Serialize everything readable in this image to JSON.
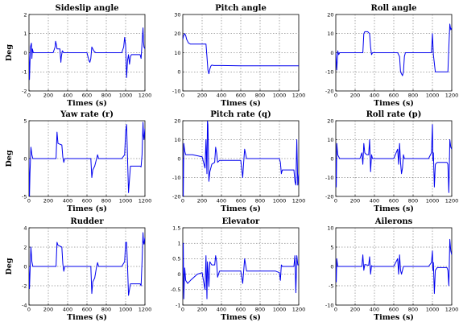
{
  "chart_data": [
    {
      "type": "line",
      "title": "Sideslip angle",
      "xlabel": "Times (s)",
      "ylabel": "Deg",
      "xlim": [
        0,
        1200
      ],
      "ylim": [
        -2,
        2
      ],
      "xticks": [
        0,
        200,
        400,
        600,
        800,
        1000,
        1200
      ],
      "yticks": [
        -2,
        -1,
        0,
        1,
        2
      ],
      "grid": true,
      "series": [
        {
          "color": "#0000ee",
          "x": [
            0,
            5,
            15,
            25,
            30,
            35,
            45,
            60,
            250,
            270,
            275,
            285,
            290,
            320,
            330,
            335,
            345,
            360,
            380,
            600,
            620,
            630,
            640,
            650,
            670,
            690,
            700,
            710,
            730,
            960,
            980,
            990,
            1000,
            1010,
            1020,
            1030,
            1040,
            1050,
            1060,
            1100,
            1150,
            1160,
            1170,
            1180,
            1185,
            1190,
            1200
          ],
          "y": [
            0,
            -1.4,
            0.3,
            0.5,
            -0.3,
            0.2,
            0,
            0,
            0,
            0.3,
            0.6,
            0.4,
            0.2,
            0.2,
            -0.5,
            -0.2,
            0.1,
            0,
            0,
            0,
            -0.4,
            -0.5,
            -0.3,
            0.3,
            0.1,
            0,
            0,
            0,
            0,
            0,
            0.3,
            0.8,
            0.4,
            -1.3,
            -0.4,
            -0.1,
            -0.6,
            -0.2,
            -0.1,
            -0.1,
            -0.1,
            -0.3,
            0.5,
            1.3,
            0.6,
            0.3,
            0.2
          ]
        }
      ]
    },
    {
      "type": "line",
      "title": "Pitch angle",
      "xlabel": "Times (s)",
      "ylabel": "",
      "xlim": [
        0,
        1200
      ],
      "ylim": [
        -10,
        30
      ],
      "xticks": [
        0,
        200,
        400,
        600,
        800,
        1000,
        1200
      ],
      "yticks": [
        -10,
        0,
        10,
        20,
        30
      ],
      "grid": true,
      "series": [
        {
          "color": "#0000ee",
          "x": [
            0,
            8,
            20,
            30,
            40,
            50,
            60,
            80,
            100,
            150,
            200,
            240,
            250,
            260,
            270,
            280,
            290,
            300,
            320,
            400,
            600,
            800,
            1000,
            1200
          ],
          "y": [
            17,
            19,
            20,
            19,
            17,
            16,
            15,
            14.5,
            14.5,
            14.5,
            14.5,
            14.5,
            8,
            1,
            -1,
            1.5,
            3,
            3.5,
            3.3,
            3.3,
            3.2,
            3.2,
            3.2,
            3.2
          ]
        }
      ]
    },
    {
      "type": "line",
      "title": "Roll angle",
      "xlabel": "Times (s)",
      "ylabel": "",
      "xlim": [
        0,
        1200
      ],
      "ylim": [
        -20,
        20
      ],
      "xticks": [
        0,
        200,
        400,
        600,
        800,
        1000,
        1200
      ],
      "yticks": [
        -20,
        -10,
        0,
        10,
        20
      ],
      "grid": true,
      "series": [
        {
          "color": "#0000ee",
          "x": [
            0,
            10,
            20,
            30,
            40,
            60,
            250,
            280,
            290,
            300,
            330,
            350,
            360,
            370,
            380,
            400,
            600,
            640,
            660,
            670,
            690,
            700,
            710,
            720,
            730,
            960,
            990,
            1000,
            1010,
            1030,
            1050,
            1100,
            1150,
            1160,
            1170,
            1180,
            1190,
            1200
          ],
          "y": [
            0,
            -9,
            1,
            -1,
            0,
            0,
            0,
            0,
            10,
            11,
            11,
            10,
            3,
            -1,
            0,
            0,
            0,
            0,
            -2,
            -10,
            -12,
            -10,
            -2,
            0,
            0,
            0,
            0,
            10,
            -1,
            -10,
            -10,
            -10,
            -10,
            -10,
            3,
            15,
            12,
            13
          ]
        }
      ]
    },
    {
      "type": "line",
      "title": "Yaw rate (r)",
      "xlabel": "Times (s)",
      "ylabel": "Deg",
      "xlim": [
        0,
        1200
      ],
      "ylim": [
        -5,
        5
      ],
      "xticks": [
        0,
        200,
        400,
        600,
        800,
        1000,
        1200
      ],
      "yticks": [
        -5,
        0,
        5
      ],
      "grid": true,
      "series": [
        {
          "color": "#0000ee",
          "x": [
            0,
            5,
            10,
            20,
            30,
            40,
            60,
            250,
            280,
            290,
            300,
            340,
            350,
            360,
            370,
            380,
            600,
            640,
            650,
            660,
            680,
            700,
            710,
            720,
            730,
            960,
            990,
            1000,
            1010,
            1020,
            1030,
            1050,
            1100,
            1150,
            1160,
            1170,
            1180,
            1185,
            1190,
            1200
          ],
          "y": [
            0,
            -5,
            -2,
            1.5,
            0.5,
            0,
            0,
            0,
            0,
            3.5,
            2,
            1.8,
            0.2,
            -0.5,
            0,
            0,
            0,
            0,
            -2.5,
            -1.5,
            -1,
            0,
            0.5,
            0,
            0,
            0,
            0.5,
            3.5,
            4.5,
            0,
            -4.5,
            -1,
            -1,
            -1,
            -1.1,
            0.5,
            4.8,
            3,
            2.5,
            4
          ]
        }
      ]
    },
    {
      "type": "line",
      "title": "Pitch rate (q)",
      "xlabel": "Times (s)",
      "ylabel": "",
      "xlim": [
        0,
        1200
      ],
      "ylim": [
        -20,
        20
      ],
      "xticks": [
        0,
        200,
        400,
        600,
        800,
        1000,
        1200
      ],
      "yticks": [
        -20,
        -10,
        0,
        10,
        20
      ],
      "grid": true,
      "series": [
        {
          "color": "#0000ee",
          "x": [
            0,
            5,
            10,
            20,
            30,
            60,
            100,
            200,
            230,
            240,
            250,
            255,
            260,
            270,
            280,
            300,
            330,
            340,
            350,
            360,
            380,
            600,
            620,
            630,
            640,
            660,
            700,
            750,
            960,
            1000,
            1010,
            1020,
            1030,
            1050,
            1100,
            1150,
            1160,
            1170,
            1180,
            1190,
            1200
          ],
          "y": [
            0,
            -20,
            8,
            4,
            2,
            2,
            2,
            1,
            -5,
            10,
            -8,
            20,
            18,
            -12,
            -7,
            -3,
            -2,
            6,
            3,
            -2,
            -1,
            -1,
            -10,
            -2,
            5,
            0,
            0,
            0,
            0,
            0,
            -2,
            -8,
            -6,
            -6,
            -6,
            -6,
            -12,
            -14,
            10,
            -14,
            -8
          ]
        }
      ]
    },
    {
      "type": "line",
      "title": "Roll rate (p)",
      "xlabel": "Times (s)",
      "ylabel": "",
      "xlim": [
        0,
        1200
      ],
      "ylim": [
        -20,
        20
      ],
      "xticks": [
        0,
        200,
        400,
        600,
        800,
        1000,
        1200
      ],
      "yticks": [
        -20,
        -10,
        0,
        10,
        20
      ],
      "grid": true,
      "series": [
        {
          "color": "#0000ee",
          "x": [
            0,
            5,
            10,
            20,
            40,
            60,
            250,
            270,
            280,
            290,
            300,
            320,
            340,
            350,
            360,
            370,
            380,
            600,
            640,
            650,
            660,
            670,
            680,
            690,
            700,
            710,
            730,
            960,
            990,
            1000,
            1005,
            1010,
            1020,
            1030,
            1050,
            1100,
            1150,
            1160,
            1170,
            1180,
            1190,
            1200
          ],
          "y": [
            0,
            -15,
            8,
            2,
            0,
            0,
            0,
            3,
            -3,
            8,
            3,
            2,
            2,
            10,
            -7,
            2,
            0,
            0,
            5,
            -3,
            8,
            -2,
            -8,
            -5,
            2,
            0,
            0,
            0,
            3,
            18,
            -1,
            3,
            -15,
            -3,
            -2,
            -2,
            -2,
            -3,
            -18,
            10,
            6,
            5
          ]
        }
      ]
    },
    {
      "type": "line",
      "title": "Rudder",
      "xlabel": "Times (s)",
      "ylabel": "Deg",
      "xlim": [
        0,
        1200
      ],
      "ylim": [
        -4,
        4
      ],
      "xticks": [
        0,
        200,
        400,
        600,
        800,
        1000,
        1200
      ],
      "yticks": [
        -4,
        -2,
        0,
        2,
        4
      ],
      "grid": true,
      "series": [
        {
          "color": "#0000ee",
          "x": [
            0,
            5,
            10,
            20,
            30,
            40,
            60,
            250,
            280,
            290,
            300,
            340,
            350,
            360,
            370,
            380,
            600,
            640,
            650,
            660,
            680,
            700,
            710,
            720,
            730,
            960,
            990,
            1000,
            1010,
            1020,
            1030,
            1050,
            1100,
            1150,
            1160,
            1170,
            1180,
            1185,
            1190,
            1200
          ],
          "y": [
            0,
            -2.3,
            -0.8,
            2,
            0.5,
            0,
            0,
            0,
            0,
            2.5,
            2.2,
            2,
            0.3,
            -0.5,
            0,
            0,
            0,
            0,
            -2.8,
            -1.6,
            -1.2,
            0,
            0.4,
            0,
            0,
            0,
            0.5,
            2.5,
            2.5,
            0,
            -3,
            -1.8,
            -1.8,
            -1.8,
            -2,
            0.5,
            3.5,
            2.5,
            2.3,
            3
          ]
        }
      ]
    },
    {
      "type": "line",
      "title": "Elevator",
      "xlabel": "Times (s)",
      "ylabel": "",
      "xlim": [
        0,
        1200
      ],
      "ylim": [
        -1,
        1.5
      ],
      "xticks": [
        0,
        200,
        400,
        600,
        800,
        1000,
        1200
      ],
      "yticks": [
        -1,
        -0.5,
        0,
        0.5,
        1,
        1.5
      ],
      "grid": true,
      "series": [
        {
          "color": "#0000ee",
          "x": [
            0,
            5,
            10,
            20,
            30,
            50,
            80,
            150,
            200,
            230,
            240,
            250,
            255,
            260,
            270,
            280,
            300,
            330,
            340,
            350,
            360,
            380,
            600,
            620,
            630,
            640,
            660,
            700,
            800,
            960,
            1000,
            1010,
            1020,
            1030,
            1050,
            1100,
            1150,
            1160,
            1170,
            1180,
            1190,
            1200
          ],
          "y": [
            0,
            1,
            -0.8,
            0.2,
            -0.2,
            -0.3,
            -0.2,
            0,
            0.05,
            -0.5,
            0.6,
            -0.8,
            0.4,
            0.2,
            -0.4,
            0.4,
            0.3,
            0.3,
            0.6,
            0.4,
            -0.1,
            0.1,
            0.1,
            -0.3,
            0.1,
            0.5,
            0.1,
            0.1,
            0.1,
            0.1,
            0.05,
            -0.2,
            0.3,
            0.25,
            0.25,
            0.25,
            0.25,
            0.6,
            -0.6,
            0.6,
            0.3,
            0.3
          ]
        }
      ]
    },
    {
      "type": "line",
      "title": "Ailerons",
      "xlabel": "Times (s)",
      "ylabel": "",
      "xlim": [
        0,
        1200
      ],
      "ylim": [
        -10,
        10
      ],
      "xticks": [
        0,
        200,
        400,
        600,
        800,
        1000,
        1200
      ],
      "yticks": [
        -10,
        -5,
        0,
        5,
        10
      ],
      "grid": true,
      "series": [
        {
          "color": "#0000ee",
          "x": [
            0,
            5,
            10,
            20,
            40,
            60,
            250,
            270,
            280,
            290,
            300,
            340,
            350,
            360,
            370,
            380,
            600,
            640,
            650,
            660,
            670,
            680,
            700,
            730,
            960,
            990,
            1000,
            1005,
            1010,
            1020,
            1030,
            1050,
            1100,
            1150,
            1160,
            1170,
            1180,
            1190,
            1200
          ],
          "y": [
            0,
            -4,
            2,
            0,
            0,
            0,
            0,
            0,
            3,
            -1,
            0.5,
            0.3,
            2.5,
            -2,
            0.2,
            0,
            0,
            2,
            -2,
            3,
            -1,
            -2,
            0,
            0,
            0,
            1,
            4,
            -1,
            1,
            -7,
            -1,
            -0.3,
            -0.3,
            -0.3,
            -1,
            -5,
            7,
            4,
            3
          ]
        }
      ]
    }
  ]
}
